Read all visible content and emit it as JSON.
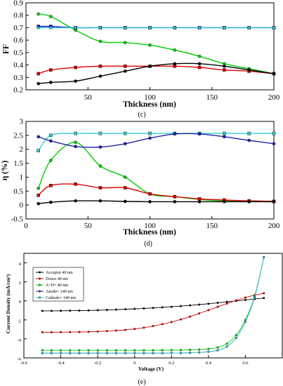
{
  "chart_data": [
    {
      "type": "line",
      "panel_label": "",
      "xlabel": "Thickness (nm)",
      "ylabel": "FF",
      "xlim": [
        0,
        200
      ],
      "ylim": [
        0.2,
        0.9
      ],
      "xticks": [
        "50",
        "100",
        "150",
        "200"
      ],
      "yticks": [
        "0.2",
        "0.3",
        "0.4",
        "0.5",
        "0.6",
        "0.7",
        "0.8",
        "0.9"
      ],
      "series": [
        {
          "color": "#00cc00",
          "x": [
            10,
            20,
            40,
            60,
            80,
            100,
            120,
            140,
            160,
            180,
            200
          ],
          "values": [
            0.81,
            0.79,
            0.68,
            0.59,
            0.58,
            0.56,
            0.52,
            0.47,
            0.41,
            0.37,
            0.33
          ]
        },
        {
          "color": "#0000ff",
          "x": [
            10,
            20,
            40,
            60,
            80,
            100,
            120,
            140,
            160,
            180,
            200
          ],
          "values": [
            0.71,
            0.71,
            0.7,
            0.7,
            0.7,
            0.7,
            0.7,
            0.7,
            0.7,
            0.7,
            0.7
          ]
        },
        {
          "color": "#33cccc",
          "x": [
            10,
            20,
            40,
            60,
            80,
            100,
            120,
            140,
            160,
            180,
            200
          ],
          "values": [
            0.7,
            0.7,
            0.7,
            0.7,
            0.7,
            0.7,
            0.7,
            0.7,
            0.7,
            0.7,
            0.7
          ]
        },
        {
          "color": "#dd0000",
          "x": [
            10,
            20,
            40,
            60,
            80,
            100,
            120,
            140,
            160,
            180,
            200
          ],
          "values": [
            0.33,
            0.36,
            0.38,
            0.39,
            0.39,
            0.39,
            0.39,
            0.38,
            0.36,
            0.35,
            0.33
          ]
        },
        {
          "color": "#000000",
          "x": [
            10,
            20,
            40,
            60,
            80,
            100,
            120,
            140,
            160,
            180,
            200
          ],
          "values": [
            0.25,
            0.26,
            0.27,
            0.31,
            0.35,
            0.39,
            0.41,
            0.41,
            0.39,
            0.36,
            0.33
          ]
        }
      ]
    },
    {
      "type": "line",
      "panel_label": "(c)",
      "xlabel": "Thickness (nm)",
      "ylabel": "η (%)",
      "xlim": [
        0,
        200
      ],
      "ylim": [
        -0.5,
        3
      ],
      "xticks": [
        "0",
        "50",
        "100",
        "150",
        "200"
      ],
      "yticks": [
        "-0.5",
        "0",
        "0.5",
        "1",
        "1.5",
        "2",
        "2.5",
        "3"
      ],
      "series": [
        {
          "color": "#00cc00",
          "x": [
            10,
            20,
            40,
            60,
            80,
            100,
            120,
            140,
            160,
            180,
            200
          ],
          "values": [
            0.6,
            1.6,
            2.25,
            1.4,
            1.0,
            0.4,
            0.3,
            0.2,
            0.15,
            0.15,
            0.13
          ]
        },
        {
          "color": "#33cccc",
          "x": [
            10,
            20,
            40,
            60,
            80,
            100,
            120,
            140,
            160,
            180,
            200
          ],
          "values": [
            1.95,
            2.5,
            2.57,
            2.57,
            2.57,
            2.57,
            2.57,
            2.57,
            2.57,
            2.57,
            2.57
          ]
        },
        {
          "color": "#2222aa",
          "x": [
            10,
            20,
            40,
            60,
            80,
            100,
            120,
            140,
            160,
            180,
            200
          ],
          "values": [
            2.45,
            2.3,
            2.1,
            2.08,
            2.2,
            2.4,
            2.55,
            2.55,
            2.45,
            2.32,
            2.2
          ]
        },
        {
          "color": "#dd0000",
          "x": [
            10,
            20,
            40,
            60,
            80,
            100,
            120,
            140,
            160,
            180,
            200
          ],
          "values": [
            0.35,
            0.7,
            0.75,
            0.62,
            0.62,
            0.4,
            0.3,
            0.22,
            0.18,
            0.15,
            0.13
          ]
        },
        {
          "color": "#000000",
          "x": [
            10,
            20,
            40,
            60,
            80,
            100,
            120,
            140,
            160,
            180,
            200
          ],
          "values": [
            0.05,
            0.1,
            0.15,
            0.15,
            0.13,
            0.12,
            0.12,
            0.12,
            0.12,
            0.12,
            0.12
          ]
        }
      ]
    },
    {
      "type": "line",
      "panel_label": "(d)",
      "xlabel": "Voltage (V)",
      "ylabel": "Current Density (mA/cm²)",
      "xlim": [
        -0.6,
        0.8
      ],
      "ylim": [
        -6,
        5
      ],
      "xticks": [
        "-0.6",
        "-0.4",
        "-0.2",
        "0",
        "0.2",
        "0.4",
        "0.6"
      ],
      "yticks": [
        "-6",
        "-4",
        "-2",
        "0",
        "2",
        "4"
      ],
      "legend_position": "top-left",
      "series": [
        {
          "name": "Acceptor 40 nm",
          "color": "#000000",
          "x": [
            -0.5,
            -0.45,
            -0.4,
            -0.35,
            -0.3,
            -0.25,
            -0.2,
            -0.15,
            -0.1,
            -0.05,
            0.0,
            0.05,
            0.1,
            0.15,
            0.2,
            0.25,
            0.3,
            0.35,
            0.4,
            0.45,
            0.5,
            0.55,
            0.6,
            0.65,
            0.7
          ],
          "values": [
            -1.05,
            -1.05,
            -1.04,
            -1.03,
            -1.02,
            -1.0,
            -0.98,
            -0.95,
            -0.92,
            -0.88,
            -0.84,
            -0.79,
            -0.74,
            -0.68,
            -0.62,
            -0.55,
            -0.47,
            -0.39,
            -0.3,
            -0.2,
            -0.1,
            0.0,
            0.1,
            0.2,
            0.3
          ]
        },
        {
          "name": "Donor 40 nm",
          "color": "#dd0000",
          "x": [
            -0.5,
            -0.45,
            -0.4,
            -0.35,
            -0.3,
            -0.25,
            -0.2,
            -0.15,
            -0.1,
            -0.05,
            0.0,
            0.05,
            0.1,
            0.15,
            0.2,
            0.25,
            0.3,
            0.35,
            0.4,
            0.45,
            0.5,
            0.55,
            0.6,
            0.65,
            0.7
          ],
          "values": [
            -3.3,
            -3.3,
            -3.29,
            -3.28,
            -3.27,
            -3.25,
            -3.22,
            -3.18,
            -3.12,
            -3.05,
            -2.95,
            -2.82,
            -2.65,
            -2.45,
            -2.22,
            -1.95,
            -1.65,
            -1.32,
            -0.97,
            -0.62,
            -0.28,
            0.05,
            0.35,
            0.6,
            0.8
          ]
        },
        {
          "name": "A+D= 40 nm",
          "color": "#00cc00",
          "x": [
            -0.5,
            -0.45,
            -0.4,
            -0.35,
            -0.3,
            -0.25,
            -0.2,
            -0.15,
            -0.1,
            -0.05,
            0.0,
            0.05,
            0.1,
            0.15,
            0.2,
            0.25,
            0.3,
            0.35,
            0.4,
            0.45,
            0.5,
            0.55,
            0.6,
            0.65,
            0.7
          ],
          "values": [
            -5.2,
            -5.2,
            -5.2,
            -5.2,
            -5.2,
            -5.2,
            -5.2,
            -5.2,
            -5.2,
            -5.2,
            -5.2,
            -5.2,
            -5.2,
            -5.19,
            -5.18,
            -5.17,
            -5.15,
            -5.12,
            -5.05,
            -4.9,
            -4.5,
            -3.6,
            -2.0,
            0.5,
            4.6
          ]
        },
        {
          "name": "Anode= 140 nm",
          "color": "#2222aa",
          "x": [
            -0.5,
            -0.45,
            -0.4,
            -0.35,
            -0.3,
            -0.25,
            -0.2,
            -0.15,
            -0.1,
            -0.05,
            0.0,
            0.05,
            0.1,
            0.15,
            0.2,
            0.25,
            0.3,
            0.35,
            0.4,
            0.45,
            0.5,
            0.55,
            0.6,
            0.65,
            0.7
          ],
          "values": [
            -5.5,
            -5.5,
            -5.5,
            -5.5,
            -5.5,
            -5.5,
            -5.5,
            -5.5,
            -5.5,
            -5.5,
            -5.5,
            -5.5,
            -5.5,
            -5.5,
            -5.49,
            -5.48,
            -5.46,
            -5.42,
            -5.35,
            -5.2,
            -4.8,
            -3.9,
            -2.2,
            0.4,
            4.6
          ]
        },
        {
          "name": "Cathode= 140 nm",
          "color": "#33cccc",
          "x": [
            -0.5,
            -0.45,
            -0.4,
            -0.35,
            -0.3,
            -0.25,
            -0.2,
            -0.15,
            -0.1,
            -0.05,
            0.0,
            0.05,
            0.1,
            0.15,
            0.2,
            0.25,
            0.3,
            0.35,
            0.4,
            0.45,
            0.5,
            0.55,
            0.6,
            0.65,
            0.7
          ],
          "values": [
            -5.5,
            -5.5,
            -5.5,
            -5.5,
            -5.5,
            -5.5,
            -5.5,
            -5.5,
            -5.5,
            -5.5,
            -5.5,
            -5.5,
            -5.5,
            -5.5,
            -5.49,
            -5.48,
            -5.46,
            -5.42,
            -5.35,
            -5.2,
            -4.8,
            -3.9,
            -2.2,
            0.4,
            4.6
          ]
        }
      ]
    }
  ],
  "bottom_panel_label": "(e)"
}
